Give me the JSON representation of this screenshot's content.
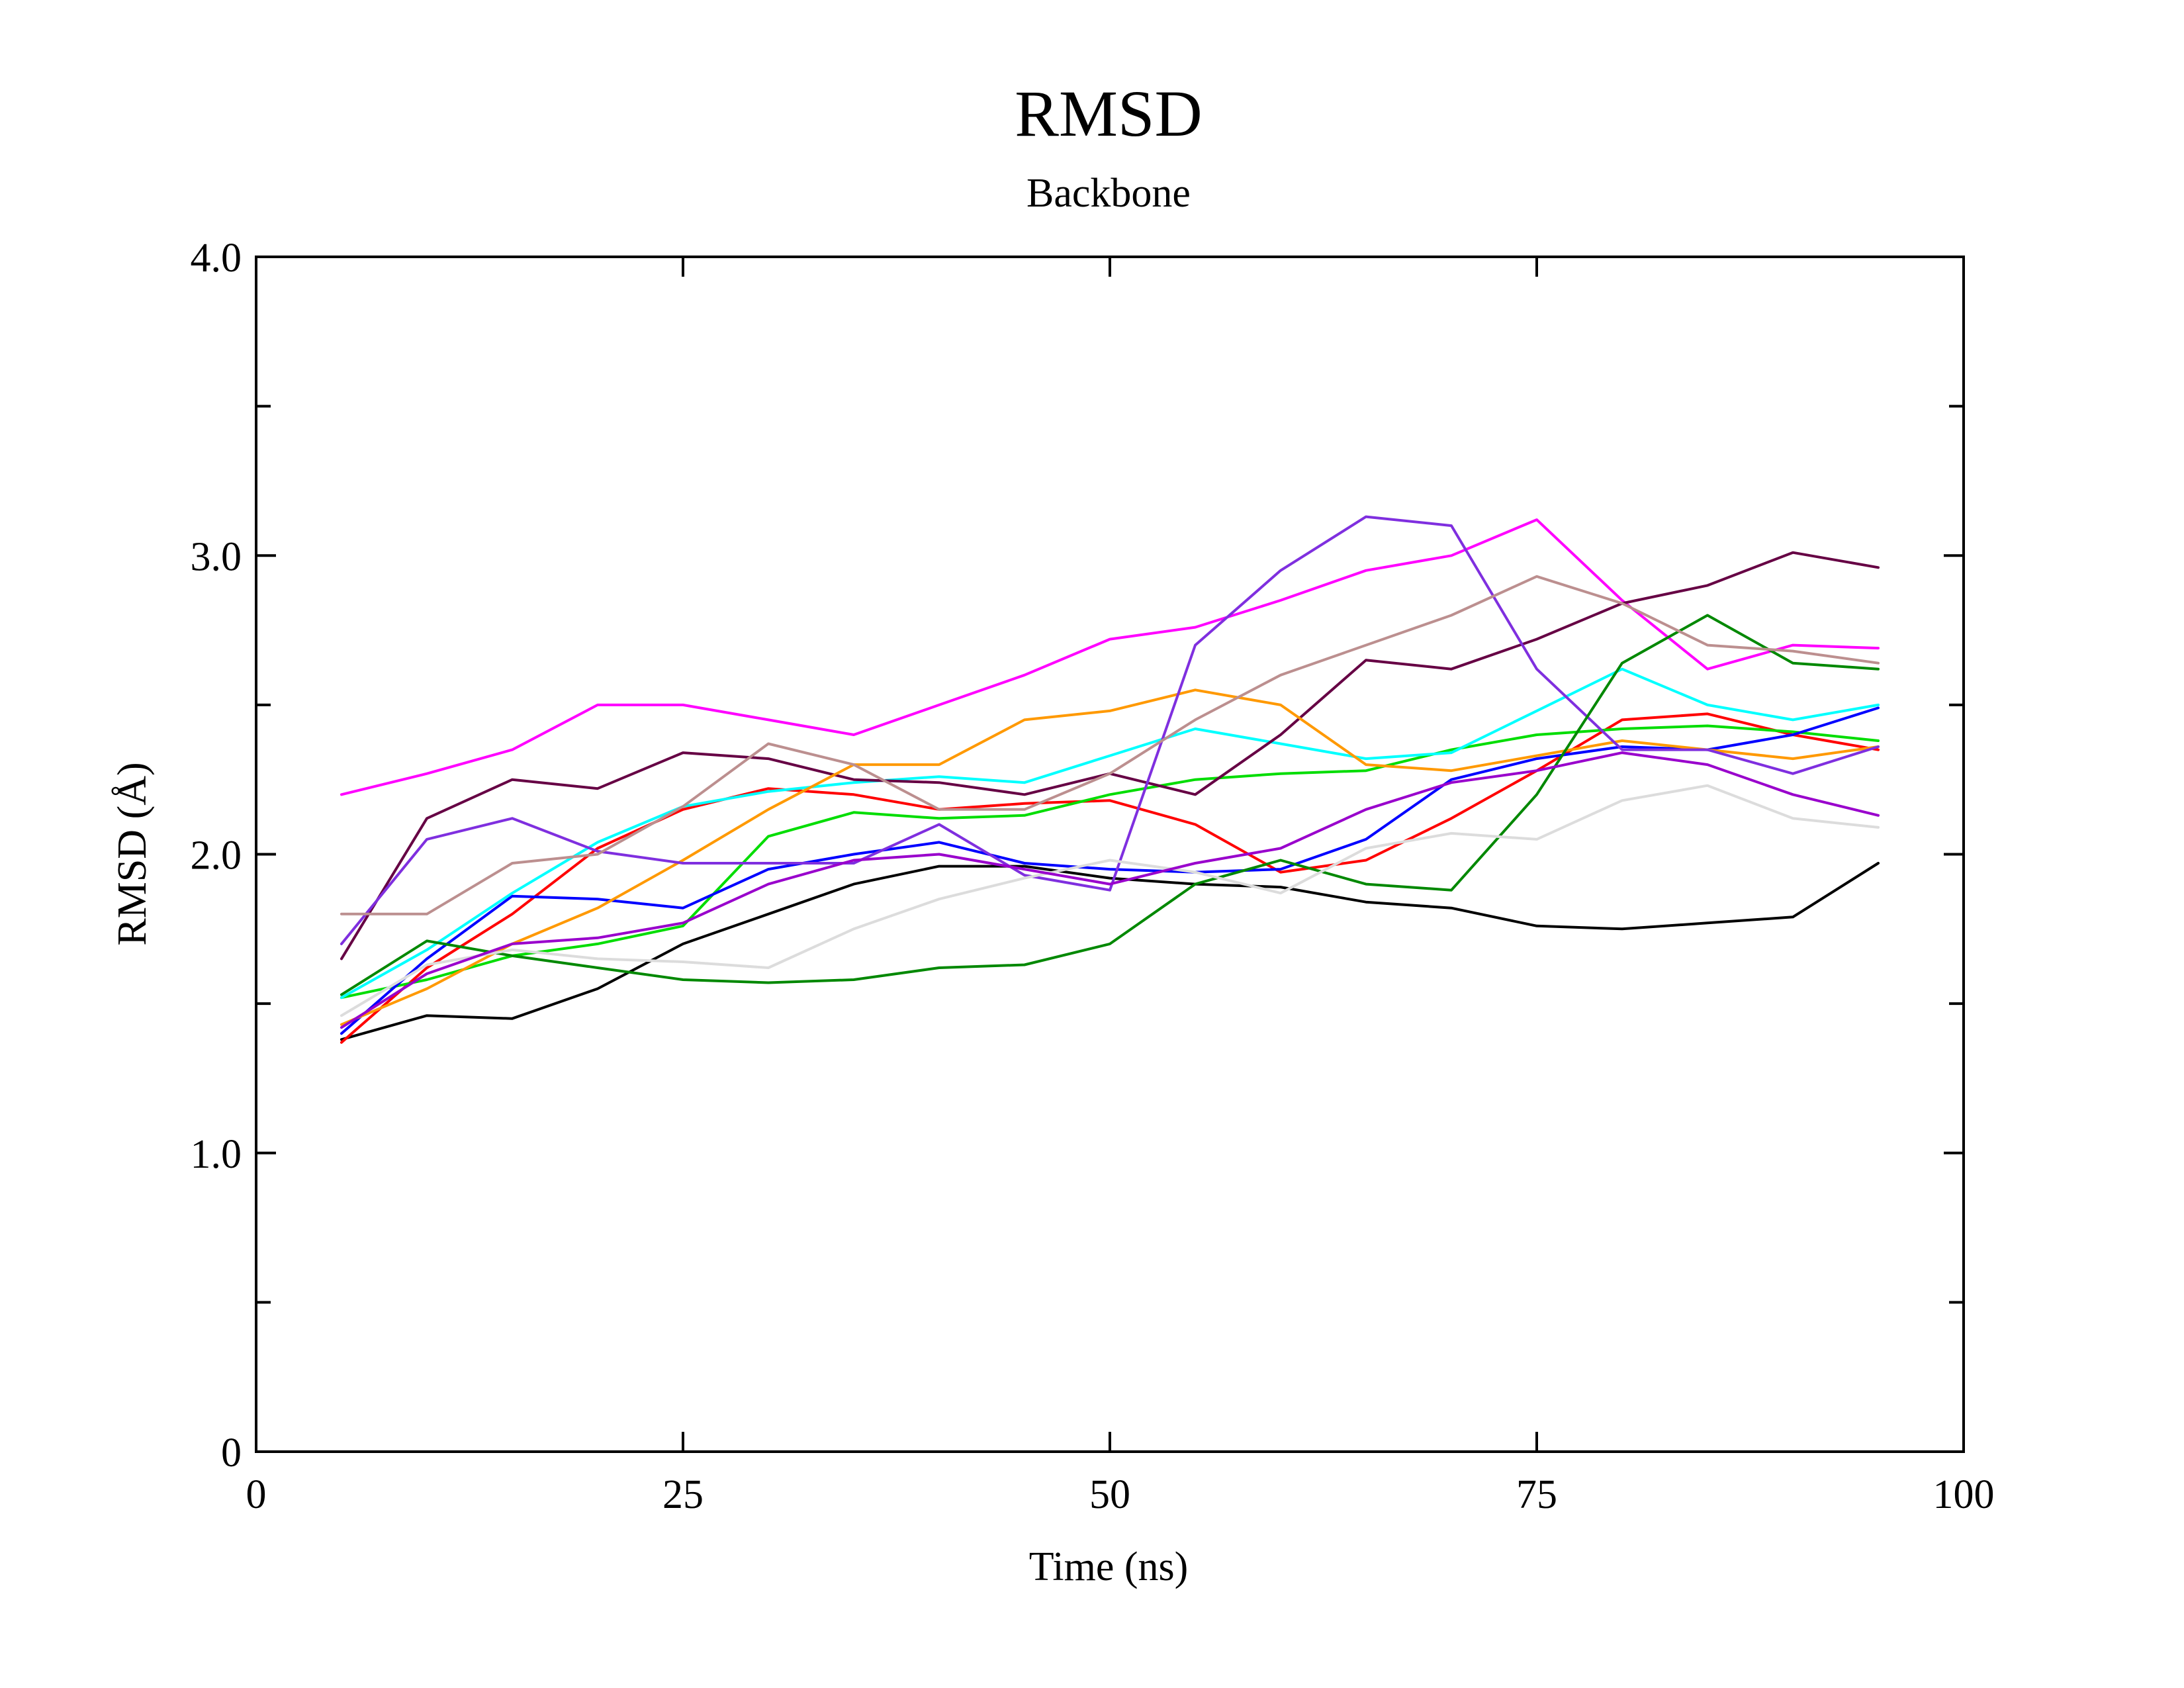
{
  "chart_data": {
    "type": "line",
    "title": "RMSD",
    "subtitle": "Backbone",
    "xlabel": "Time (ns)",
    "ylabel": "RMSD (Å)",
    "xlim": [
      0,
      100
    ],
    "ylim": [
      0,
      4.0
    ],
    "xticks": [
      0,
      25,
      50,
      75,
      100
    ],
    "xtick_labels": [
      "0",
      "25",
      "50",
      "75",
      "100"
    ],
    "yticks": [
      0,
      1.0,
      2.0,
      3.0,
      4.0
    ],
    "ytick_labels": [
      "0",
      "1.0",
      "2.0",
      "3.0",
      "4.0"
    ],
    "y_minor_ticks": [
      0.5,
      1.5,
      2.5,
      3.5
    ],
    "grid": false,
    "legend": "none",
    "x": [
      5,
      10,
      15,
      20,
      25,
      30,
      35,
      40,
      45,
      50,
      55,
      60,
      65,
      70,
      75,
      80,
      85,
      90,
      95
    ],
    "series": [
      {
        "color": "#000000",
        "values": [
          1.38,
          1.46,
          1.45,
          1.55,
          1.7,
          1.8,
          1.9,
          1.96,
          1.96,
          1.92,
          1.9,
          1.89,
          1.84,
          1.82,
          1.76,
          1.75,
          1.77,
          1.79,
          1.97
        ]
      },
      {
        "color": "#ff0000",
        "values": [
          1.37,
          1.62,
          1.8,
          2.02,
          2.15,
          2.22,
          2.2,
          2.15,
          2.17,
          2.18,
          2.1,
          1.94,
          1.98,
          2.12,
          2.28,
          2.45,
          2.47,
          2.4,
          2.35
        ]
      },
      {
        "color": "#00dd00",
        "values": [
          1.52,
          1.58,
          1.66,
          1.7,
          1.76,
          2.06,
          2.14,
          2.12,
          2.13,
          2.2,
          2.25,
          2.27,
          2.28,
          2.35,
          2.4,
          2.42,
          2.43,
          2.41,
          2.38
        ]
      },
      {
        "color": "#0000ff",
        "values": [
          1.4,
          1.65,
          1.86,
          1.85,
          1.82,
          1.95,
          2.0,
          2.04,
          1.97,
          1.95,
          1.94,
          1.95,
          2.05,
          2.25,
          2.32,
          2.36,
          2.35,
          2.4,
          2.49
        ]
      },
      {
        "color": "#ff00ff",
        "values": [
          2.2,
          2.27,
          2.35,
          2.5,
          2.5,
          2.45,
          2.4,
          2.5,
          2.6,
          2.72,
          2.76,
          2.85,
          2.95,
          3.0,
          3.12,
          2.85,
          2.62,
          2.7,
          2.69
        ]
      },
      {
        "color": "#00ffff",
        "values": [
          1.52,
          1.68,
          1.87,
          2.04,
          2.16,
          2.21,
          2.24,
          2.26,
          2.24,
          2.33,
          2.42,
          2.37,
          2.32,
          2.34,
          2.48,
          2.62,
          2.5,
          2.45,
          2.5
        ]
      },
      {
        "color": "#660044",
        "values": [
          1.65,
          2.12,
          2.25,
          2.22,
          2.34,
          2.32,
          2.25,
          2.24,
          2.2,
          2.27,
          2.2,
          2.4,
          2.65,
          2.62,
          2.72,
          2.84,
          2.9,
          3.01,
          2.96
        ]
      },
      {
        "color": "#ff9900",
        "values": [
          1.43,
          1.55,
          1.7,
          1.82,
          1.98,
          2.15,
          2.3,
          2.3,
          2.45,
          2.48,
          2.55,
          2.5,
          2.3,
          2.28,
          2.33,
          2.38,
          2.35,
          2.32,
          2.36
        ]
      },
      {
        "color": "#7f2fdf",
        "values": [
          1.7,
          2.05,
          2.12,
          2.01,
          1.97,
          1.97,
          1.97,
          2.1,
          1.93,
          1.88,
          2.7,
          2.95,
          3.13,
          3.1,
          2.62,
          2.35,
          2.35,
          2.27,
          2.36
        ]
      },
      {
        "color": "#008800",
        "values": [
          1.53,
          1.71,
          1.66,
          1.62,
          1.58,
          1.57,
          1.58,
          1.62,
          1.63,
          1.7,
          1.9,
          1.98,
          1.9,
          1.88,
          2.2,
          2.64,
          2.8,
          2.64,
          2.62
        ]
      },
      {
        "color": "#bc8f8f",
        "values": [
          1.8,
          1.8,
          1.97,
          2.0,
          2.16,
          2.37,
          2.3,
          2.15,
          2.15,
          2.27,
          2.45,
          2.6,
          2.7,
          2.8,
          2.93,
          2.84,
          2.7,
          2.68,
          2.64
        ]
      },
      {
        "color": "#dcdcdc",
        "values": [
          1.46,
          1.63,
          1.68,
          1.65,
          1.64,
          1.62,
          1.75,
          1.85,
          1.92,
          1.98,
          1.94,
          1.87,
          2.02,
          2.07,
          2.05,
          2.18,
          2.23,
          2.12,
          2.09
        ]
      },
      {
        "color": "#9900cc",
        "values": [
          1.42,
          1.6,
          1.7,
          1.72,
          1.77,
          1.9,
          1.98,
          2.0,
          1.95,
          1.9,
          1.97,
          2.02,
          2.15,
          2.24,
          2.28,
          2.34,
          2.3,
          2.2,
          2.13
        ]
      }
    ]
  }
}
